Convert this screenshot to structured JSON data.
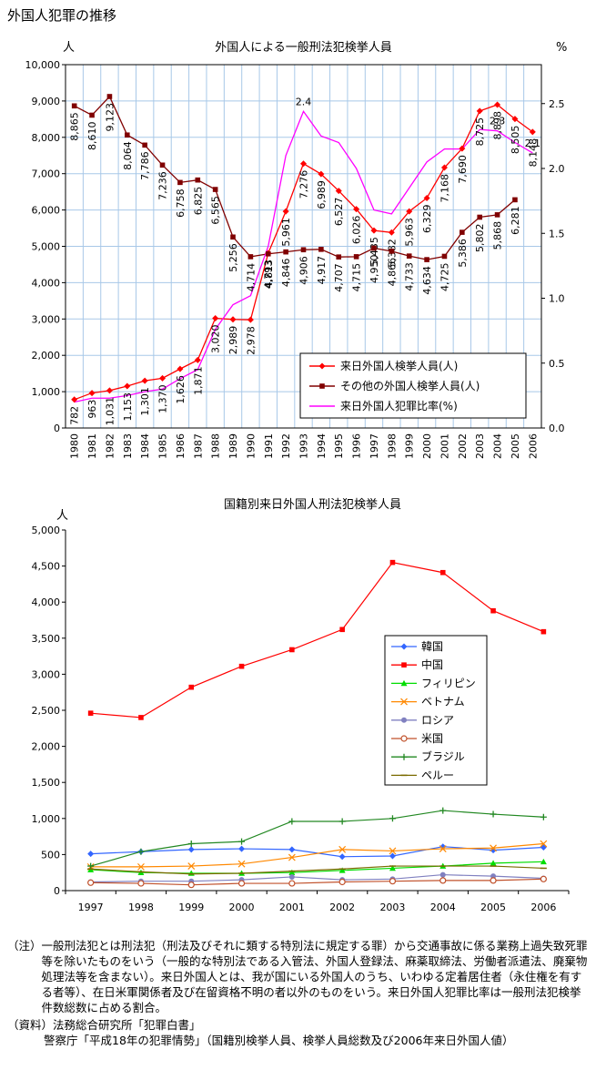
{
  "page_title": "外国人犯罪の推移",
  "chart_data": [
    {
      "type": "line",
      "title": "外国人による一般刑法犯検挙人員",
      "left_unit": "人",
      "right_unit": "%",
      "categories": [
        "1980",
        "1981",
        "1982",
        "1983",
        "1984",
        "1985",
        "1986",
        "1987",
        "1988",
        "1989",
        "1990",
        "1991",
        "1992",
        "1993",
        "1994",
        "1995",
        "1996",
        "1997",
        "1998",
        "1999",
        "2000",
        "2001",
        "2002",
        "2003",
        "2004",
        "2005",
        "2006"
      ],
      "y_left": {
        "min": 0,
        "max": 10000,
        "ticks": [
          "0",
          "1,000",
          "2,000",
          "3,000",
          "4,000",
          "5,000",
          "6,000",
          "7,000",
          "8,000",
          "9,000",
          "10,000"
        ]
      },
      "y_right": {
        "min": 0,
        "max": 2.8,
        "ticks": [
          "0.0",
          "0.5",
          "1.0",
          "1.5",
          "2.0",
          "2.5"
        ]
      },
      "grid": true,
      "legend_position": "bottom-right",
      "series": [
        {
          "name": "来日外国人検挙人員(人)",
          "axis": "left",
          "color": "#ff0000",
          "marker": "diamond",
          "values": [
            782,
            963,
            1031,
            1153,
            1301,
            1370,
            1626,
            1871,
            3020,
            2989,
            2978,
            4813,
            5961,
            7276,
            6989,
            6527,
            6026,
            5435,
            5382,
            5963,
            6329,
            7168,
            7690,
            8725,
            8898,
            8505,
            8148
          ],
          "labels": [
            "782",
            "963",
            "1,031",
            "1,153",
            "1,301",
            "1,370",
            "1,626",
            "1,871",
            "3,020",
            "2,989",
            "2,978",
            "4,813",
            "5,961",
            "7,276",
            "6,989",
            "6,527",
            "6,026",
            "5,435",
            "5,382",
            "5,963",
            "6,329",
            "7,168",
            "7,690",
            "8,725",
            "8,898",
            "8,505",
            "8,148"
          ]
        },
        {
          "name": "その他の外国人検挙人員(人)",
          "axis": "left",
          "color": "#800000",
          "marker": "square",
          "values": [
            8865,
            8610,
            9123,
            8064,
            7786,
            7236,
            6758,
            6825,
            6565,
            5256,
            4714,
            4793,
            4846,
            4906,
            4917,
            4707,
            4715,
            4950,
            4866,
            4733,
            4634,
            4725,
            5386,
            5802,
            5868,
            6281,
            null
          ],
          "labels": [
            "8,865",
            "8,610",
            "9,123",
            "8,064",
            "7,786",
            "7,236",
            "6,758",
            "6,825",
            "6,565",
            "5,256",
            "4,714",
            "4,793",
            "4,846",
            "4,906",
            "4,917",
            "4,707",
            "4,715",
            "4,950",
            "4,866",
            "4,733",
            "4,634",
            "4,725",
            "5,386",
            "5,802",
            "5,868",
            "6,281",
            ""
          ]
        },
        {
          "name": "来日外国人犯罪比率(%)",
          "axis": "right",
          "color": "#ff00ff",
          "marker": "none",
          "values": [
            0.2,
            0.23,
            0.23,
            0.25,
            0.28,
            0.3,
            0.38,
            0.45,
            0.76,
            0.95,
            1.02,
            1.4,
            2.1,
            2.44,
            2.25,
            2.2,
            2.0,
            1.68,
            1.65,
            1.85,
            2.05,
            2.15,
            2.15,
            2.3,
            2.29,
            2.2,
            2.12
          ],
          "labels": [
            "",
            "",
            "",
            "",
            "",
            "",
            "",
            "",
            "",
            "",
            "",
            "",
            "",
            "2.4",
            "",
            "",
            "",
            "",
            "",
            "",
            "",
            "",
            "",
            "",
            "2.3",
            "",
            "2.1"
          ]
        }
      ]
    },
    {
      "type": "line",
      "title": "国籍別来日外国人刑法犯検挙人員",
      "left_unit": "人",
      "categories": [
        "1997",
        "1998",
        "1999",
        "2000",
        "2001",
        "2002",
        "2003",
        "2004",
        "2005",
        "2006"
      ],
      "y": {
        "min": 0,
        "max": 5000,
        "ticks": [
          "0",
          "500",
          "1,000",
          "1,500",
          "2,000",
          "2,500",
          "3,000",
          "3,500",
          "4,000",
          "4,500",
          "5,000"
        ]
      },
      "grid": false,
      "legend_position": "center-right",
      "series": [
        {
          "name": "韓国",
          "color": "#3366ff",
          "marker": "diamond",
          "values": [
            510,
            540,
            570,
            580,
            570,
            470,
            480,
            610,
            560,
            600
          ]
        },
        {
          "name": "中国",
          "color": "#ff0000",
          "marker": "square",
          "values": [
            2460,
            2400,
            2820,
            3110,
            3340,
            3620,
            4550,
            4410,
            3880,
            3590
          ]
        },
        {
          "name": "フィリピン",
          "color": "#00dd00",
          "marker": "triangle",
          "values": [
            290,
            250,
            240,
            240,
            250,
            280,
            310,
            340,
            380,
            400
          ]
        },
        {
          "name": "ベトナム",
          "color": "#ff8800",
          "marker": "x",
          "values": [
            330,
            330,
            340,
            370,
            460,
            570,
            550,
            580,
            590,
            650
          ]
        },
        {
          "name": "ロシア",
          "color": "#8080c0",
          "marker": "circle",
          "values": [
            120,
            130,
            130,
            150,
            190,
            150,
            160,
            220,
            200,
            170
          ]
        },
        {
          "name": "米国",
          "color": "#c0502a",
          "marker": "circle-open",
          "values": [
            110,
            100,
            80,
            100,
            100,
            120,
            130,
            140,
            140,
            160
          ]
        },
        {
          "name": "ブラジル",
          "color": "#228822",
          "marker": "plus",
          "values": [
            340,
            540,
            650,
            680,
            960,
            960,
            1000,
            1110,
            1060,
            1020
          ]
        },
        {
          "name": "ペルー",
          "color": "#7a6a00",
          "marker": "dash",
          "values": [
            300,
            260,
            230,
            240,
            270,
            300,
            340,
            340,
            340,
            310
          ]
        }
      ]
    }
  ],
  "notes": {
    "note_label": "（注）",
    "note_text": "一般刑法犯とは刑法犯（刑法及びそれに類する特別法に規定する罪）から交通事故に係る業務上過失致死罪等を除いたものをいう（一般的な特別法である入管法、外国人登録法、麻薬取締法、労働者派遣法、廃棄物処理法等を含まない）。来日外国人とは、我が国にいる外国人のうち、いわゆる定着居住者（永住権を有する者等）、在日米軍関係者及び在留資格不明の者以外のものをいう。来日外国人犯罪比率は一般刑法犯検挙件数総数に占める割合。",
    "source_label": "（資料）",
    "source_line1": "法務総合研究所「犯罪白書」",
    "source_line2": "警察庁「平成18年の犯罪情勢」（国籍別検挙人員、検挙人員総数及び2006年来日外国人値）"
  }
}
